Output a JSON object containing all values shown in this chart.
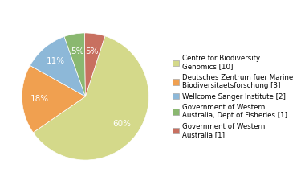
{
  "slices": [
    58,
    17,
    11,
    5,
    5
  ],
  "labels": [
    "Centre for Biodiversity\nGenomics [10]",
    "Deutsches Zentrum fuer Marine\nBiodiversitaetsforschung [3]",
    "Wellcome Sanger Institute [2]",
    "Government of Western\nAustralia, Dept of Fisheries [1]",
    "Government of Western\nAustralia [1]"
  ],
  "colors": [
    "#d4d98a",
    "#f0a050",
    "#8db8d8",
    "#8ab870",
    "#c87060"
  ],
  "startangle": 72,
  "background_color": "#ffffff",
  "pct_fontsize": 7.5,
  "legend_fontsize": 6.2
}
